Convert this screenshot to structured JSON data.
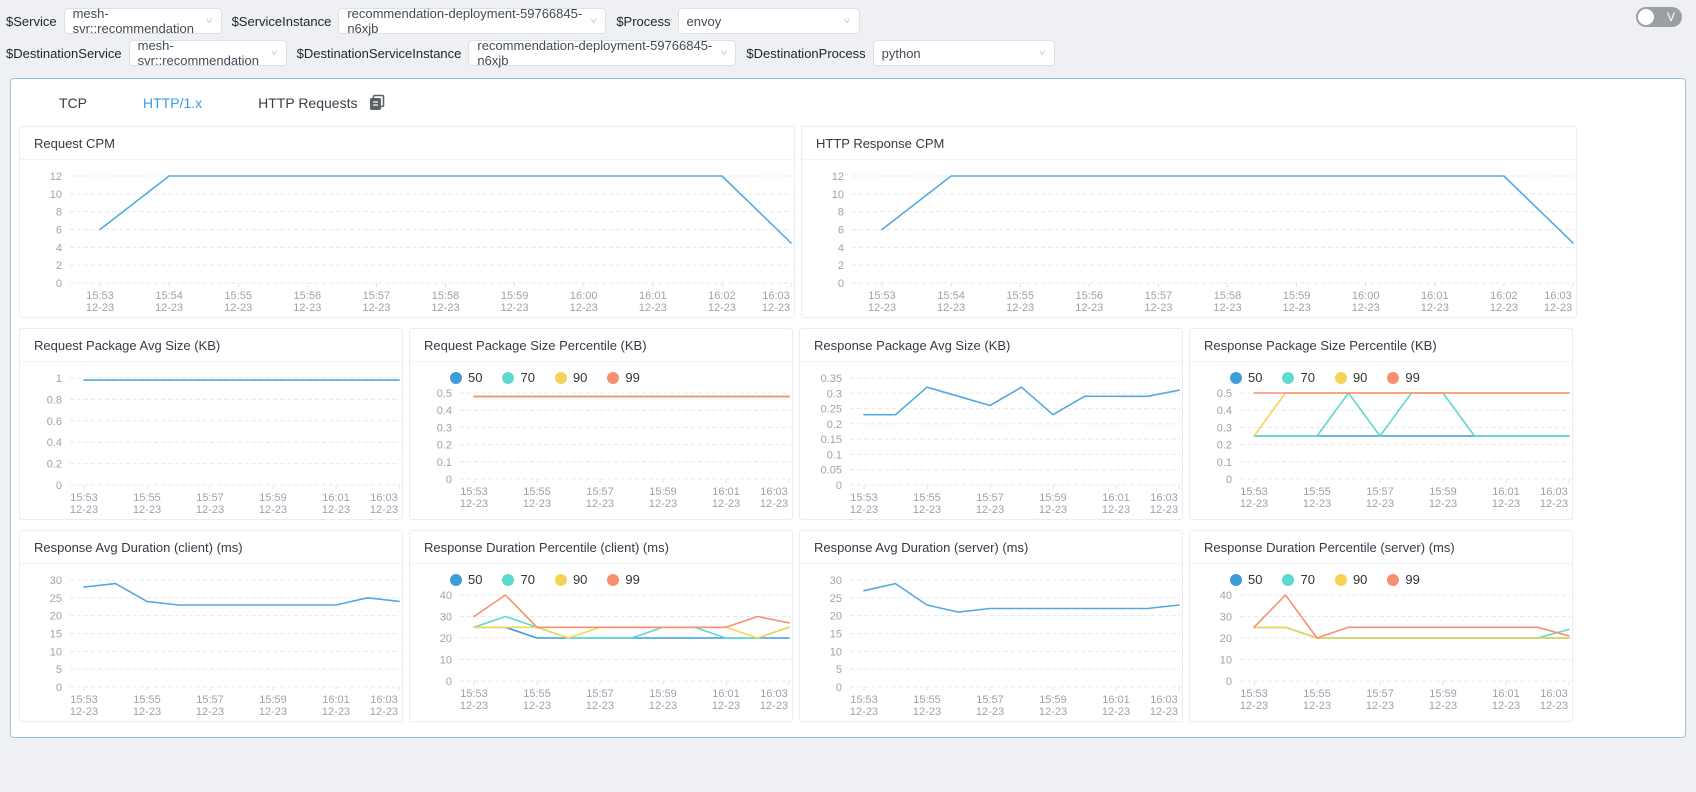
{
  "filters": {
    "row1": [
      {
        "label": "$Service",
        "value": "mesh-svr::recommendation",
        "width": "w155"
      },
      {
        "label": "$ServiceInstance",
        "value": "recommendation-deployment-59766845-n6xjb",
        "width": "w260"
      },
      {
        "label": "$Process",
        "value": "envoy",
        "width": "w180"
      }
    ],
    "row2": [
      {
        "label": "$DestinationService",
        "value": "mesh-svr::recommendation",
        "width": "w155"
      },
      {
        "label": "$DestinationServiceInstance",
        "value": "recommendation-deployment-59766845-n6xjb",
        "width": "w260"
      },
      {
        "label": "$DestinationProcess",
        "value": "python",
        "width": "w180"
      }
    ]
  },
  "toggle": {
    "label": "V"
  },
  "tabs": [
    {
      "label": "TCP",
      "active": false
    },
    {
      "label": "HTTP/1.x",
      "active": true
    },
    {
      "label": "HTTP Requests",
      "active": false,
      "icon": "copy-icon"
    }
  ],
  "colors": {
    "line_blue": "#55a9e0",
    "p50": "#3d9dd8",
    "p70": "#5fd8cf",
    "p90": "#f6d354",
    "p99": "#f88f70",
    "grid": "#e4e8ee",
    "axis_text": "#9aa3ad",
    "tab_active": "#3a9be8",
    "panel_border": "#8cc3ec"
  },
  "chart_data": [
    {
      "type": "line",
      "title": "Request CPM",
      "wide": true,
      "x_label_every": 1,
      "x": [
        "15:53",
        "15:54",
        "15:55",
        "15:56",
        "15:57",
        "15:58",
        "15:59",
        "16:00",
        "16:01",
        "16:02",
        "16:03"
      ],
      "x_sub": "12-23",
      "yticks": [
        "12",
        "10",
        "8",
        "6",
        "4",
        "2",
        "0"
      ],
      "ylim": [
        0,
        12
      ],
      "grid": true,
      "series": [
        {
          "name": "value",
          "color": "#55a9e0",
          "values": [
            6,
            12,
            12,
            12,
            12,
            12,
            12,
            12,
            12,
            12,
            4.5
          ]
        }
      ]
    },
    {
      "type": "line",
      "title": "HTTP Response CPM",
      "wide": true,
      "x_label_every": 1,
      "x": [
        "15:53",
        "15:54",
        "15:55",
        "15:56",
        "15:57",
        "15:58",
        "15:59",
        "16:00",
        "16:01",
        "16:02",
        "16:03"
      ],
      "x_sub": "12-23",
      "yticks": [
        "12",
        "10",
        "8",
        "6",
        "4",
        "2",
        "0"
      ],
      "ylim": [
        0,
        12
      ],
      "grid": true,
      "series": [
        {
          "name": "value",
          "color": "#55a9e0",
          "values": [
            6,
            12,
            12,
            12,
            12,
            12,
            12,
            12,
            12,
            12,
            4.5
          ]
        }
      ]
    },
    {
      "type": "line",
      "title": "Request Package Avg Size (KB)",
      "wide": false,
      "x_label_every": 2,
      "x": [
        "15:53",
        "15:54",
        "15:55",
        "15:56",
        "15:57",
        "15:58",
        "15:59",
        "16:00",
        "16:01",
        "16:02",
        "16:03"
      ],
      "x_sub": "12-23",
      "yticks": [
        "1",
        "0.8",
        "0.6",
        "0.4",
        "0.2",
        "0"
      ],
      "ylim": [
        0,
        1
      ],
      "grid": true,
      "series": [
        {
          "name": "value",
          "color": "#55a9e0",
          "values": [
            0.98,
            0.98,
            0.98,
            0.98,
            0.98,
            0.98,
            0.98,
            0.98,
            0.98,
            0.98,
            0.98
          ]
        }
      ]
    },
    {
      "type": "line",
      "title": "Request Package Size Percentile (KB)",
      "wide": false,
      "x_label_every": 2,
      "legend": [
        "50",
        "70",
        "90",
        "99"
      ],
      "x": [
        "15:53",
        "15:54",
        "15:55",
        "15:56",
        "15:57",
        "15:58",
        "15:59",
        "16:00",
        "16:01",
        "16:02",
        "16:03"
      ],
      "x_sub": "12-23",
      "yticks": [
        "0.5",
        "0.4",
        "0.3",
        "0.2",
        "0.1",
        "0"
      ],
      "ylim": [
        0,
        0.5
      ],
      "grid": true,
      "series": [
        {
          "name": "50",
          "color": "#3d9dd8",
          "values": [
            0.48,
            0.48,
            0.48,
            0.48,
            0.48,
            0.48,
            0.48,
            0.48,
            0.48,
            0.48,
            0.48
          ]
        },
        {
          "name": "70",
          "color": "#5fd8cf",
          "values": [
            0.48,
            0.48,
            0.48,
            0.48,
            0.48,
            0.48,
            0.48,
            0.48,
            0.48,
            0.48,
            0.48
          ]
        },
        {
          "name": "90",
          "color": "#f6d354",
          "values": [
            0.48,
            0.48,
            0.48,
            0.48,
            0.48,
            0.48,
            0.48,
            0.48,
            0.48,
            0.48,
            0.48
          ]
        },
        {
          "name": "99",
          "color": "#f88f70",
          "values": [
            0.48,
            0.48,
            0.48,
            0.48,
            0.48,
            0.48,
            0.48,
            0.48,
            0.48,
            0.48,
            0.48
          ]
        }
      ]
    },
    {
      "type": "line",
      "title": "Response Package Avg Size (KB)",
      "wide": false,
      "x_label_every": 2,
      "x": [
        "15:53",
        "15:54",
        "15:55",
        "15:56",
        "15:57",
        "15:58",
        "15:59",
        "16:00",
        "16:01",
        "16:02",
        "16:03"
      ],
      "x_sub": "12-23",
      "yticks": [
        "0.35",
        "0.3",
        "0.25",
        "0.2",
        "0.15",
        "0.1",
        "0.05",
        "0"
      ],
      "ylim": [
        0,
        0.35
      ],
      "grid": true,
      "series": [
        {
          "name": "value",
          "color": "#55a9e0",
          "values": [
            0.23,
            0.23,
            0.32,
            0.29,
            0.26,
            0.32,
            0.23,
            0.29,
            0.29,
            0.29,
            0.31
          ]
        }
      ]
    },
    {
      "type": "line",
      "title": "Response Package Size Percentile (KB)",
      "wide": false,
      "x_label_every": 2,
      "legend": [
        "50",
        "70",
        "90",
        "99"
      ],
      "x": [
        "15:53",
        "15:54",
        "15:55",
        "15:56",
        "15:57",
        "15:58",
        "15:59",
        "16:00",
        "16:01",
        "16:02",
        "16:03"
      ],
      "x_sub": "12-23",
      "yticks": [
        "0.5",
        "0.4",
        "0.3",
        "0.2",
        "0.1",
        "0"
      ],
      "ylim": [
        0,
        0.5
      ],
      "grid": true,
      "series": [
        {
          "name": "50",
          "color": "#3d9dd8",
          "values": [
            0.25,
            0.25,
            0.25,
            0.25,
            0.25,
            0.25,
            0.25,
            0.25,
            0.25,
            0.25,
            0.25
          ]
        },
        {
          "name": "70",
          "color": "#5fd8cf",
          "values": [
            0.25,
            0.25,
            0.25,
            0.5,
            0.25,
            0.5,
            0.5,
            0.25,
            0.25,
            0.25,
            0.25
          ]
        },
        {
          "name": "90",
          "color": "#f6d354",
          "values": [
            0.25,
            0.5,
            0.5,
            0.5,
            0.5,
            0.5,
            0.5,
            0.5,
            0.5,
            0.5,
            0.5
          ]
        },
        {
          "name": "99",
          "color": "#f88f70",
          "values": [
            0.5,
            0.5,
            0.5,
            0.5,
            0.5,
            0.5,
            0.5,
            0.5,
            0.5,
            0.5,
            0.5
          ]
        }
      ]
    },
    {
      "type": "line",
      "title": "Response Avg Duration (client) (ms)",
      "wide": false,
      "x_label_every": 2,
      "x": [
        "15:53",
        "15:54",
        "15:55",
        "15:56",
        "15:57",
        "15:58",
        "15:59",
        "16:00",
        "16:01",
        "16:02",
        "16:03"
      ],
      "x_sub": "12-23",
      "yticks": [
        "30",
        "25",
        "20",
        "15",
        "10",
        "5",
        "0"
      ],
      "ylim": [
        0,
        30
      ],
      "grid": true,
      "series": [
        {
          "name": "value",
          "color": "#55a9e0",
          "values": [
            28,
            29,
            24,
            23,
            23,
            23,
            23,
            23,
            23,
            25,
            24
          ]
        }
      ]
    },
    {
      "type": "line",
      "title": "Response Duration Percentile (client) (ms)",
      "wide": false,
      "x_label_every": 2,
      "legend": [
        "50",
        "70",
        "90",
        "99"
      ],
      "x": [
        "15:53",
        "15:54",
        "15:55",
        "15:56",
        "15:57",
        "15:58",
        "15:59",
        "16:00",
        "16:01",
        "16:02",
        "16:03"
      ],
      "x_sub": "12-23",
      "yticks": [
        "40",
        "30",
        "20",
        "10",
        "0"
      ],
      "ylim": [
        0,
        40
      ],
      "grid": true,
      "series": [
        {
          "name": "50",
          "color": "#3d9dd8",
          "values": [
            25,
            25,
            20,
            20,
            20,
            20,
            20,
            20,
            20,
            20,
            20
          ]
        },
        {
          "name": "70",
          "color": "#5fd8cf",
          "values": [
            25,
            30,
            25,
            20,
            20,
            20,
            25,
            25,
            20,
            20,
            25
          ]
        },
        {
          "name": "90",
          "color": "#f6d354",
          "values": [
            25,
            25,
            25,
            20,
            25,
            25,
            25,
            25,
            25,
            20,
            25
          ]
        },
        {
          "name": "99",
          "color": "#f88f70",
          "values": [
            30,
            40,
            25,
            25,
            25,
            25,
            25,
            25,
            25,
            30,
            27
          ]
        }
      ]
    },
    {
      "type": "line",
      "title": "Response Avg Duration (server) (ms)",
      "wide": false,
      "x_label_every": 2,
      "x": [
        "15:53",
        "15:54",
        "15:55",
        "15:56",
        "15:57",
        "15:58",
        "15:59",
        "16:00",
        "16:01",
        "16:02",
        "16:03"
      ],
      "x_sub": "12-23",
      "yticks": [
        "30",
        "25",
        "20",
        "15",
        "10",
        "5",
        "0"
      ],
      "ylim": [
        0,
        30
      ],
      "grid": true,
      "series": [
        {
          "name": "value",
          "color": "#55a9e0",
          "values": [
            27,
            29,
            23,
            21,
            22,
            22,
            22,
            22,
            22,
            22,
            23
          ]
        }
      ]
    },
    {
      "type": "line",
      "title": "Response Duration Percentile (server) (ms)",
      "wide": false,
      "x_label_every": 2,
      "legend": [
        "50",
        "70",
        "90",
        "99"
      ],
      "x": [
        "15:53",
        "15:54",
        "15:55",
        "15:56",
        "15:57",
        "15:58",
        "15:59",
        "16:00",
        "16:01",
        "16:02",
        "16:03"
      ],
      "x_sub": "12-23",
      "yticks": [
        "40",
        "30",
        "20",
        "10",
        "0"
      ],
      "ylim": [
        0,
        40
      ],
      "grid": true,
      "series": [
        {
          "name": "50",
          "color": "#3d9dd8",
          "values": [
            25,
            25,
            20,
            20,
            20,
            20,
            20,
            20,
            20,
            20,
            20
          ]
        },
        {
          "name": "70",
          "color": "#5fd8cf",
          "values": [
            25,
            25,
            20,
            20,
            20,
            20,
            20,
            20,
            20,
            20,
            24
          ]
        },
        {
          "name": "90",
          "color": "#f6d354",
          "values": [
            25,
            25,
            20,
            20,
            20,
            20,
            20,
            20,
            20,
            20,
            20
          ]
        },
        {
          "name": "99",
          "color": "#f88f70",
          "values": [
            25,
            40,
            20,
            25,
            25,
            25,
            25,
            25,
            25,
            25,
            21
          ]
        }
      ]
    }
  ]
}
